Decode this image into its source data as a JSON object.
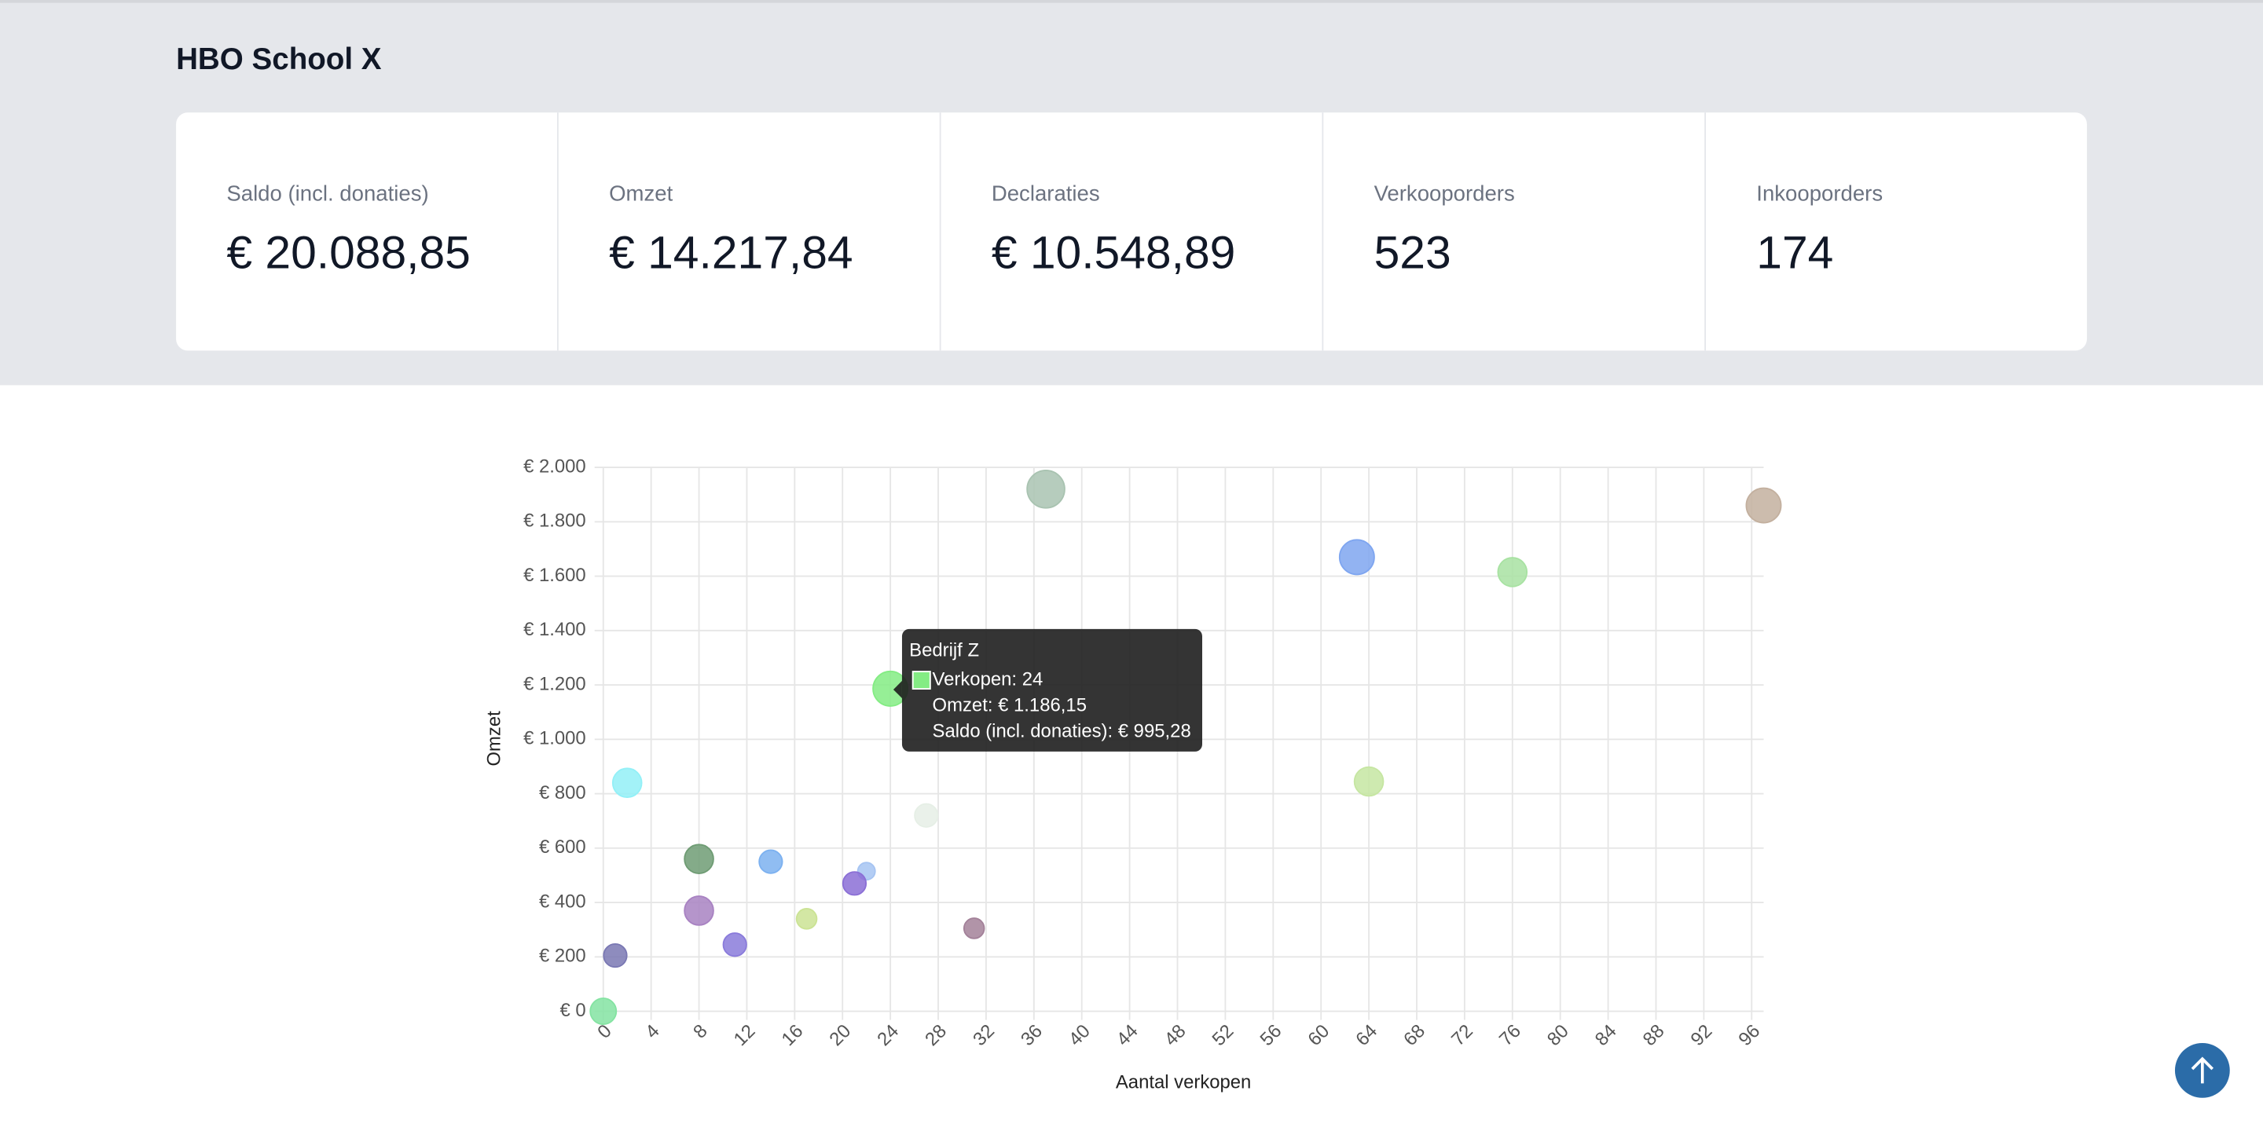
{
  "header": {
    "title": "HBO School X"
  },
  "stats": [
    {
      "label": "Saldo (incl. donaties)",
      "value": "€ 20.088,85"
    },
    {
      "label": "Omzet",
      "value": "€ 14.217,84"
    },
    {
      "label": "Declaraties",
      "value": "€ 10.548,89"
    },
    {
      "label": "Verkooporders",
      "value": "523"
    },
    {
      "label": "Inkooporders",
      "value": "174"
    }
  ],
  "chart_data": {
    "type": "bubble",
    "x_label": "Aantal verkopen",
    "y_label": "Omzet",
    "xlim": [
      0,
      97
    ],
    "ylim": [
      0,
      2000
    ],
    "xticks": [
      0,
      4,
      8,
      12,
      16,
      20,
      24,
      28,
      32,
      36,
      40,
      44,
      48,
      52,
      56,
      60,
      64,
      68,
      72,
      76,
      80,
      84,
      88,
      92,
      96
    ],
    "yticks": [
      {
        "value": 0,
        "label": "€ 0"
      },
      {
        "value": 200,
        "label": "€ 200"
      },
      {
        "value": 400,
        "label": "€ 400"
      },
      {
        "value": 600,
        "label": "€ 600"
      },
      {
        "value": 800,
        "label": "€ 800"
      },
      {
        "value": 1000,
        "label": "€ 1.000"
      },
      {
        "value": 1200,
        "label": "€ 1.200"
      },
      {
        "value": 1400,
        "label": "€ 1.400"
      },
      {
        "value": 1600,
        "label": "€ 1.600"
      },
      {
        "value": 1800,
        "label": "€ 1.800"
      },
      {
        "value": 2000,
        "label": "€ 2.000"
      }
    ],
    "grid": true,
    "series": [
      {
        "x": [
          37,
          97,
          63,
          76,
          24,
          2,
          64,
          27,
          8,
          14,
          22,
          21,
          8,
          17,
          31,
          11,
          1,
          0
        ],
        "values": [
          1920,
          1860,
          1670,
          1615,
          1186.15,
          840,
          845,
          720,
          560,
          550,
          515,
          470,
          370,
          340,
          305,
          245,
          205,
          0
        ],
        "sizes": [
          13,
          12,
          12,
          10,
          12,
          10,
          10,
          8,
          10,
          8,
          6,
          8,
          10,
          7,
          7,
          8,
          8,
          9
        ],
        "colors": [
          "#a9c3b1",
          "#c3b09f",
          "#7fa6f0",
          "#a8e2a2",
          "#84ec84",
          "#93f0f7",
          "#c6e6a2",
          "#e6efe6",
          "#6f9c74",
          "#7cb1f0",
          "#a6c4f2",
          "#8b6fd6",
          "#a882c2",
          "#cbe394",
          "#a38199",
          "#8a7bdb",
          "#7a78b3",
          "#84e3a2"
        ]
      }
    ],
    "tooltip": {
      "title": "Bedrijf Z",
      "lines": [
        "Verkopen: 24",
        "Omzet: € 1.186,15",
        "Saldo (incl. donaties): € 995,28"
      ],
      "color": "#84ec84"
    }
  }
}
